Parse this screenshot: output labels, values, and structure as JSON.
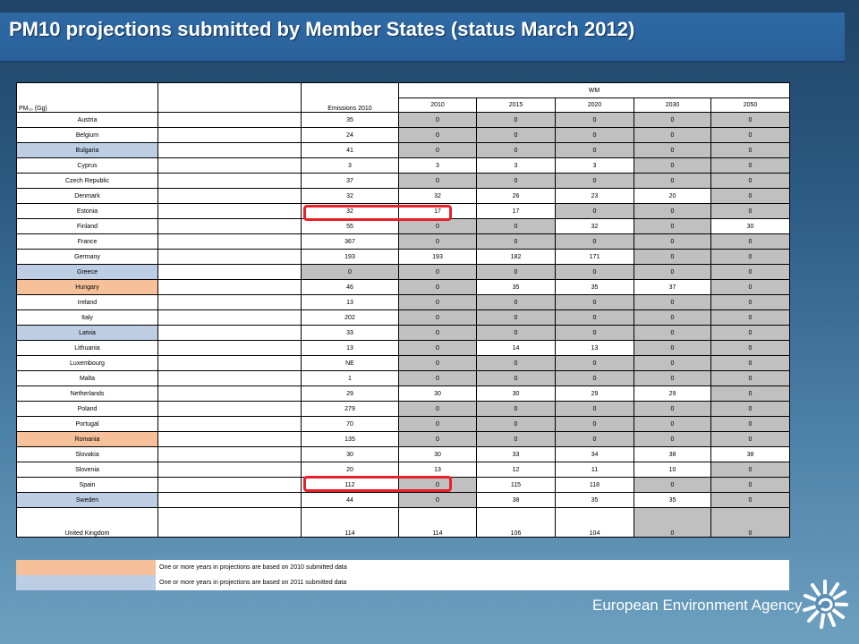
{
  "title": "PM10 projections submitted by Member States (status March 2012)",
  "table": {
    "header_unit": "PM₁₀ (Gg)",
    "header_emissions": "Emissions 2010",
    "header_group": "WM",
    "years": [
      "2010",
      "2015",
      "2020",
      "2030",
      "2050"
    ],
    "rows": [
      {
        "country": "Austria",
        "emissions": "35",
        "values": [
          "0",
          "0",
          "0",
          "0",
          "0"
        ],
        "highlight": "",
        "gray": [
          true,
          true,
          true,
          true,
          true
        ]
      },
      {
        "country": "Belgium",
        "emissions": "24",
        "values": [
          "0",
          "0",
          "0",
          "0",
          "0"
        ],
        "highlight": "",
        "gray": [
          true,
          true,
          true,
          true,
          true
        ]
      },
      {
        "country": "Bulgaria",
        "emissions": "41",
        "values": [
          "0",
          "0",
          "0",
          "0",
          "0"
        ],
        "highlight": "blue",
        "gray": [
          true,
          true,
          true,
          true,
          true
        ]
      },
      {
        "country": "Cyprus",
        "emissions": "3",
        "values": [
          "3",
          "3",
          "3",
          "0",
          "0"
        ],
        "highlight": "",
        "gray": [
          false,
          false,
          false,
          true,
          true
        ]
      },
      {
        "country": "Czech Republic",
        "emissions": "37",
        "values": [
          "0",
          "0",
          "0",
          "0",
          "0"
        ],
        "highlight": "",
        "gray": [
          true,
          true,
          true,
          true,
          true
        ]
      },
      {
        "country": "Denmark",
        "emissions": "32",
        "values": [
          "32",
          "26",
          "23",
          "20",
          "0"
        ],
        "highlight": "",
        "gray": [
          false,
          false,
          false,
          false,
          true
        ]
      },
      {
        "country": "Estonia",
        "emissions": "32",
        "values": [
          "17",
          "17",
          "0",
          "0",
          "0"
        ],
        "highlight": "",
        "gray": [
          false,
          false,
          true,
          true,
          true
        ]
      },
      {
        "country": "Finland",
        "emissions": "55",
        "values": [
          "0",
          "0",
          "32",
          "0",
          "30"
        ],
        "highlight": "",
        "gray": [
          true,
          true,
          false,
          true,
          false
        ]
      },
      {
        "country": "France",
        "emissions": "367",
        "values": [
          "0",
          "0",
          "0",
          "0",
          "0"
        ],
        "highlight": "",
        "gray": [
          true,
          true,
          true,
          true,
          true
        ]
      },
      {
        "country": "Germany",
        "emissions": "193",
        "values": [
          "193",
          "182",
          "171",
          "0",
          "0"
        ],
        "highlight": "",
        "gray": [
          false,
          false,
          false,
          true,
          true
        ]
      },
      {
        "country": "Greece",
        "emissions": "0",
        "values": [
          "0",
          "0",
          "0",
          "0",
          "0"
        ],
        "highlight": "blue",
        "gray": [
          true,
          true,
          true,
          true,
          true
        ],
        "emissions_gray": true
      },
      {
        "country": "Hungary",
        "emissions": "46",
        "values": [
          "0",
          "35",
          "35",
          "37",
          "0"
        ],
        "highlight": "orange",
        "gray": [
          true,
          false,
          false,
          false,
          true
        ]
      },
      {
        "country": "Ireland",
        "emissions": "13",
        "values": [
          "0",
          "0",
          "0",
          "0",
          "0"
        ],
        "highlight": "",
        "gray": [
          true,
          true,
          true,
          true,
          true
        ]
      },
      {
        "country": "Italy",
        "emissions": "202",
        "values": [
          "0",
          "0",
          "0",
          "0",
          "0"
        ],
        "highlight": "",
        "gray": [
          true,
          true,
          true,
          true,
          true
        ]
      },
      {
        "country": "Latvia",
        "emissions": "33",
        "values": [
          "0",
          "0",
          "0",
          "0",
          "0"
        ],
        "highlight": "blue",
        "gray": [
          true,
          true,
          true,
          true,
          true
        ]
      },
      {
        "country": "Lithuania",
        "emissions": "13",
        "values": [
          "0",
          "14",
          "13",
          "0",
          "0"
        ],
        "highlight": "",
        "gray": [
          true,
          false,
          false,
          true,
          true
        ]
      },
      {
        "country": "Luxembourg",
        "emissions": "NE",
        "values": [
          "0",
          "0",
          "0",
          "0",
          "0"
        ],
        "highlight": "",
        "gray": [
          true,
          true,
          true,
          true,
          true
        ]
      },
      {
        "country": "Malta",
        "emissions": "1",
        "values": [
          "0",
          "0",
          "0",
          "0",
          "0"
        ],
        "highlight": "",
        "gray": [
          true,
          true,
          true,
          true,
          true
        ]
      },
      {
        "country": "Netherlands",
        "emissions": "29",
        "values": [
          "30",
          "30",
          "29",
          "29",
          "0"
        ],
        "highlight": "",
        "gray": [
          false,
          false,
          false,
          false,
          true
        ]
      },
      {
        "country": "Poland",
        "emissions": "279",
        "values": [
          "0",
          "0",
          "0",
          "0",
          "0"
        ],
        "highlight": "",
        "gray": [
          true,
          true,
          true,
          true,
          true
        ]
      },
      {
        "country": "Portugal",
        "emissions": "70",
        "values": [
          "0",
          "0",
          "0",
          "0",
          "0"
        ],
        "highlight": "",
        "gray": [
          true,
          true,
          true,
          true,
          true
        ]
      },
      {
        "country": "Romania",
        "emissions": "135",
        "values": [
          "0",
          "0",
          "0",
          "0",
          "0"
        ],
        "highlight": "orange",
        "gray": [
          true,
          true,
          true,
          true,
          true
        ]
      },
      {
        "country": "Slovakia",
        "emissions": "30",
        "values": [
          "30",
          "33",
          "34",
          "38",
          "38"
        ],
        "highlight": "",
        "gray": [
          false,
          false,
          false,
          false,
          false
        ]
      },
      {
        "country": "Slovenia",
        "emissions": "20",
        "values": [
          "13",
          "12",
          "11",
          "10",
          "0"
        ],
        "highlight": "",
        "gray": [
          false,
          false,
          false,
          false,
          true
        ]
      },
      {
        "country": "Spain",
        "emissions": "112",
        "values": [
          "0",
          "115",
          "118",
          "0",
          "0"
        ],
        "highlight": "",
        "gray": [
          true,
          false,
          false,
          true,
          true
        ]
      },
      {
        "country": "Sweden",
        "emissions": "44",
        "values": [
          "0",
          "38",
          "35",
          "35",
          "0"
        ],
        "highlight": "blue",
        "gray": [
          true,
          false,
          false,
          false,
          true
        ]
      },
      {
        "country": "United Kingdom",
        "emissions": "114",
        "values": [
          "114",
          "106",
          "104",
          "0",
          "0"
        ],
        "highlight": "",
        "gray": [
          false,
          false,
          false,
          true,
          true
        ],
        "big": true
      }
    ]
  },
  "legend": {
    "orange_text": "One or more years in projections are based on 2010 submitted data",
    "blue_text": "One or more years in projections are based on 2011 submitted data",
    "orange_color": "#f6c09a",
    "blue_color": "#bccde4"
  },
  "brand": {
    "name": "European Environment Agency",
    "logo_icon": "eea-sun-logo-icon"
  },
  "colors": {
    "title_bar": "#2e6aa5",
    "highlight_ring": "#e8202a",
    "gray_cell": "#c0c0c0"
  }
}
